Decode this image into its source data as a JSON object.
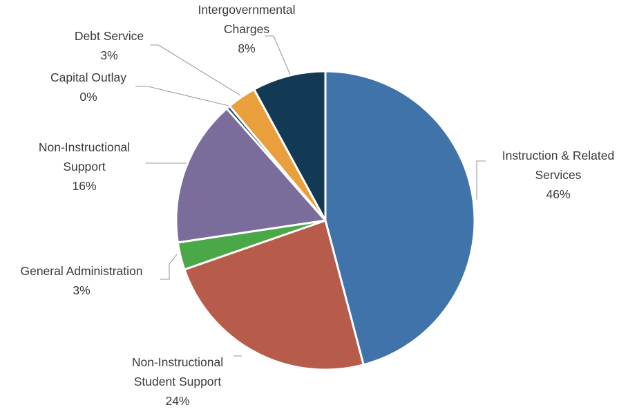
{
  "chart_data": {
    "type": "pie",
    "title": "",
    "slices": [
      {
        "label": [
          "Instruction & Related",
          "Services"
        ],
        "percent_label": "46%",
        "value": 46.3,
        "color": "#3f73a9"
      },
      {
        "label": [
          "Non-Instructional",
          "Student Support"
        ],
        "percent_label": "24%",
        "value": 24.0,
        "color": "#b75b4a"
      },
      {
        "label": [
          "General Administration"
        ],
        "percent_label": "3%",
        "value": 3.0,
        "color": "#4aa849"
      },
      {
        "label": [
          "Non-Instructional",
          "Support"
        ],
        "percent_label": "16%",
        "value": 16.0,
        "color": "#7a6d9c"
      },
      {
        "label": [
          "Capital Outlay"
        ],
        "percent_label": "0%",
        "value": 0.4,
        "color": "#1f4e7a"
      },
      {
        "label": [
          "Debt Service"
        ],
        "percent_label": "3%",
        "value": 3.2,
        "color": "#e9a03c"
      },
      {
        "label": [
          "Intergovernmental",
          "Charges"
        ],
        "percent_label": "8%",
        "value": 8.0,
        "color": "#133a54"
      }
    ]
  }
}
